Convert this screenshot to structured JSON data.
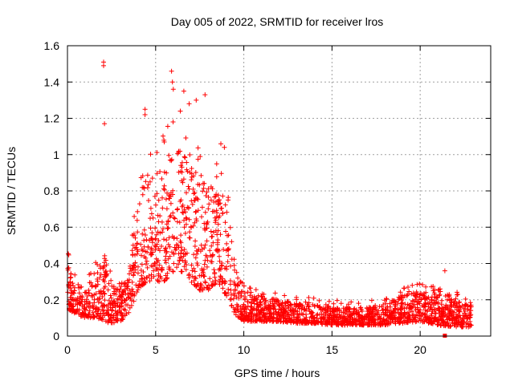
{
  "chart_data": {
    "type": "scatter",
    "title": "Day 005 of 2022, SRMTID for receiver lros",
    "xlabel": "GPS time / hours",
    "ylabel": "SRMTID / TECUs",
    "xlim": [
      0,
      24
    ],
    "ylim": [
      0,
      1.6
    ],
    "grid": true,
    "x_ticks": [
      0,
      5,
      10,
      15,
      20
    ],
    "x_tick_labels": [
      "0",
      "5",
      "10",
      "15",
      "20"
    ],
    "y_ticks": [
      0,
      0.2,
      0.4,
      0.6,
      0.8,
      1,
      1.2,
      1.4,
      1.6
    ],
    "y_tick_labels": [
      "0",
      "0.2",
      "0.4",
      "0.6",
      "0.8",
      "1",
      "1.2",
      "1.4",
      "1.6"
    ],
    "marker": "+",
    "color": "#ff0000",
    "envelope_hours": [
      0,
      0.5,
      1,
      1.5,
      2,
      2.5,
      3,
      3.5,
      4,
      4.5,
      5,
      5.5,
      6,
      6.5,
      7,
      7.5,
      8,
      8.5,
      9,
      9.5,
      10,
      11,
      12,
      13,
      14,
      15,
      16,
      17,
      18,
      19,
      20,
      21,
      22,
      23
    ],
    "envelope_low": [
      0.15,
      0.12,
      0.1,
      0.1,
      0.08,
      0.07,
      0.08,
      0.12,
      0.25,
      0.3,
      0.3,
      0.3,
      0.35,
      0.35,
      0.3,
      0.25,
      0.25,
      0.3,
      0.2,
      0.12,
      0.08,
      0.08,
      0.08,
      0.07,
      0.07,
      0.06,
      0.06,
      0.06,
      0.06,
      0.07,
      0.08,
      0.06,
      0.05,
      0.05
    ],
    "envelope_high": [
      0.4,
      0.3,
      0.25,
      0.35,
      0.5,
      0.3,
      0.25,
      0.35,
      0.75,
      0.9,
      0.85,
      0.95,
      1.05,
      1.05,
      0.95,
      0.85,
      0.85,
      0.8,
      0.8,
      0.4,
      0.25,
      0.22,
      0.2,
      0.18,
      0.18,
      0.17,
      0.16,
      0.16,
      0.18,
      0.22,
      0.25,
      0.22,
      0.2,
      0.18
    ],
    "notable_points": [
      {
        "x": 2.05,
        "y": 1.51
      },
      {
        "x": 2.05,
        "y": 1.49
      },
      {
        "x": 2.1,
        "y": 1.17
      },
      {
        "x": 5.9,
        "y": 1.46
      },
      {
        "x": 5.95,
        "y": 1.4
      },
      {
        "x": 6.0,
        "y": 1.36
      },
      {
        "x": 6.6,
        "y": 1.35
      },
      {
        "x": 7.3,
        "y": 1.3
      },
      {
        "x": 7.8,
        "y": 1.33
      },
      {
        "x": 4.4,
        "y": 1.25
      },
      {
        "x": 4.4,
        "y": 1.22
      },
      {
        "x": 6.4,
        "y": 1.24
      },
      {
        "x": 6.9,
        "y": 1.28
      },
      {
        "x": 8.7,
        "y": 1.06
      },
      {
        "x": 8.9,
        "y": 1.04
      },
      {
        "x": 21.4,
        "y": 0.36
      },
      {
        "x": 21.4,
        "y": 0.0
      }
    ],
    "point_count": 2400
  }
}
